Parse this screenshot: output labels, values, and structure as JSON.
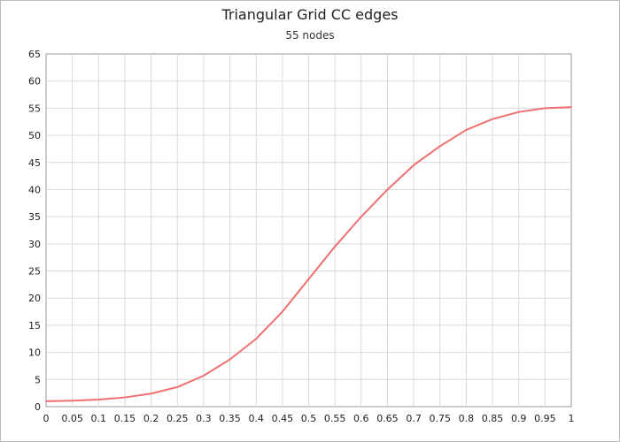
{
  "chart_data": {
    "type": "line",
    "title": "Triangular Grid CC edges",
    "subtitle": "55 nodes",
    "xlabel": "",
    "ylabel": "",
    "xlim": [
      0,
      1
    ],
    "ylim": [
      0,
      65
    ],
    "x_ticks": [
      "0",
      "0.05",
      "0.1",
      "0.15",
      "0.2",
      "0.25",
      "0.3",
      "0.35",
      "0.4",
      "0.45",
      "0.5",
      "0.55",
      "0.6",
      "0.65",
      "0.7",
      "0.75",
      "0.8",
      "0.85",
      "0.9",
      "0.95",
      "1"
    ],
    "y_ticks": [
      "0",
      "5",
      "10",
      "15",
      "20",
      "25",
      "30",
      "35",
      "40",
      "45",
      "50",
      "55",
      "60",
      "65"
    ],
    "grid": true,
    "legend": "none",
    "series": [
      {
        "color": "#f07070",
        "x": [
          0,
          0.05,
          0.1,
          0.15,
          0.2,
          0.25,
          0.3,
          0.35,
          0.4,
          0.45,
          0.5,
          0.55,
          0.6,
          0.65,
          0.7,
          0.75,
          0.8,
          0.85,
          0.9,
          0.95,
          1
        ],
        "values": [
          1.0,
          1.1,
          1.3,
          1.7,
          2.4,
          3.6,
          5.7,
          8.7,
          12.5,
          17.5,
          23.5,
          29.5,
          35.0,
          40.0,
          44.5,
          48.0,
          51.0,
          53.0,
          54.3,
          55.0,
          55.2
        ]
      }
    ]
  }
}
